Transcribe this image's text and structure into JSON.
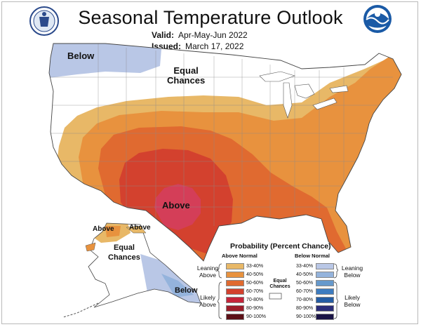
{
  "header": {
    "title": "Seasonal Temperature Outlook",
    "valid_label": "Valid:",
    "valid_value": "Apr-May-Jun 2022",
    "issued_label": "Issued:",
    "issued_value": "March 17, 2022"
  },
  "logos": {
    "left": "doc-seal-icon",
    "right": "noaa-logo-icon"
  },
  "map": {
    "labels": {
      "below_northwest": "Below",
      "equal_chances_north": [
        "Equal",
        "Chances"
      ],
      "above_south": "Above",
      "above_alaska_1": "Above",
      "above_alaska_2": "Above",
      "equal_chances_alaska": [
        "Equal",
        "Chances"
      ],
      "below_alaska": "Below"
    }
  },
  "legend": {
    "title": "Probability (Percent Chance)",
    "above_header": "Above Normal",
    "below_header": "Below Normal",
    "leaning_above": [
      "Leaning",
      "Above"
    ],
    "likely_above": [
      "Likely",
      "Above"
    ],
    "leaning_below": [
      "Leaning",
      "Below"
    ],
    "likely_below": [
      "Likely",
      "Below"
    ],
    "equal_chances": [
      "Equal",
      "Chances"
    ],
    "above": [
      {
        "range": "33-40%",
        "color": "#e8b867"
      },
      {
        "range": "40-50%",
        "color": "#e8923e"
      },
      {
        "range": "50-60%",
        "color": "#e06a30"
      },
      {
        "range": "60-70%",
        "color": "#d3412e"
      },
      {
        "range": "70-80%",
        "color": "#c5243a"
      },
      {
        "range": "80-90%",
        "color": "#9c1c2a"
      },
      {
        "range": "90-100%",
        "color": "#5c1017"
      }
    ],
    "below": [
      {
        "range": "33-40%",
        "color": "#b9c7e6"
      },
      {
        "range": "40-50%",
        "color": "#94b3dc"
      },
      {
        "range": "50-60%",
        "color": "#6699cc"
      },
      {
        "range": "60-70%",
        "color": "#3d7cc0"
      },
      {
        "range": "70-80%",
        "color": "#245ca3"
      },
      {
        "range": "80-90%",
        "color": "#2b2d78"
      },
      {
        "range": "90-100%",
        "color": "#1a1446"
      }
    ]
  }
}
